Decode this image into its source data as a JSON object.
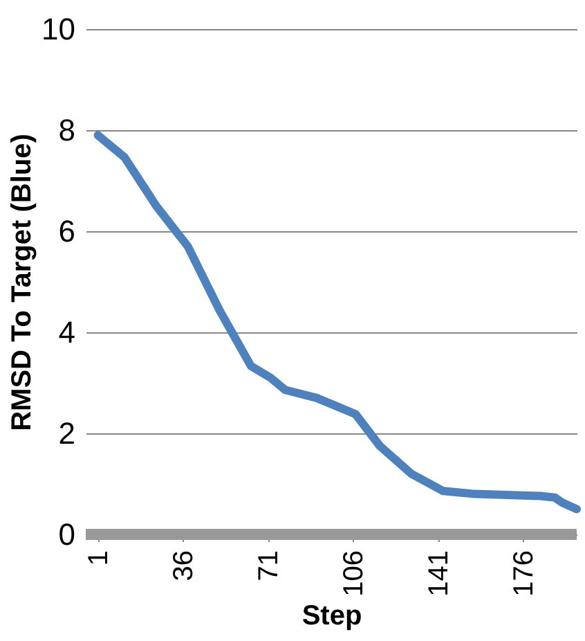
{
  "chart_data": {
    "type": "line",
    "xlabel": "Step",
    "ylabel": "RMSD To Target (Blue)",
    "x": [
      1,
      12,
      25,
      38,
      51,
      64,
      72,
      78,
      91,
      107,
      117,
      130,
      143,
      156,
      183,
      189,
      192,
      198
    ],
    "series": [
      {
        "color": "#4f81bd",
        "values": [
          7.9,
          7.46,
          6.5,
          5.7,
          4.44,
          3.33,
          3.1,
          2.86,
          2.7,
          2.38,
          1.75,
          1.2,
          0.86,
          0.8,
          0.76,
          0.73,
          0.63,
          0.5
        ]
      }
    ],
    "xlim": [
      -4,
      198
    ],
    "xticks": [
      1,
      36,
      71,
      106,
      141,
      176
    ],
    "ylim": [
      0,
      10
    ],
    "yticks": [
      0,
      2,
      4,
      6,
      8,
      10
    ],
    "grid": "y",
    "marker": "none",
    "line_style": "solid"
  }
}
